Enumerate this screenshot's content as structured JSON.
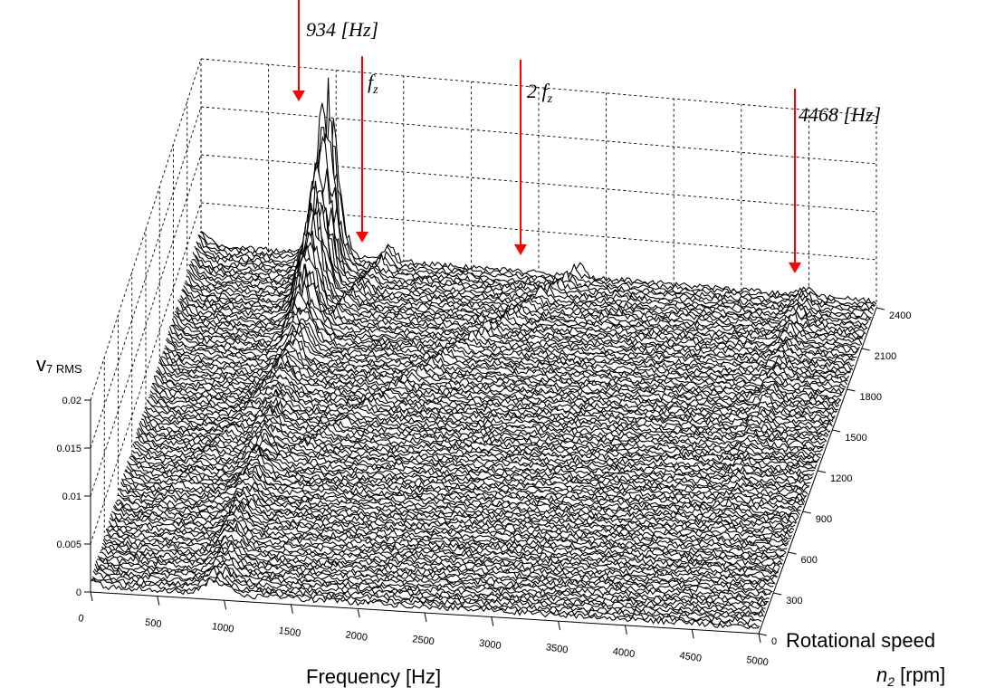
{
  "chart_data": {
    "type": "waterfall-3d",
    "x_axis": {
      "label": "Frequency [Hz]",
      "ticks": [
        "0",
        "500",
        "1000",
        "1500",
        "2000",
        "2500",
        "3000",
        "3500",
        "4000",
        "4500",
        "5000"
      ],
      "range": [
        0,
        5000
      ]
    },
    "y_axis": {
      "label_line1": "Rotational speed",
      "label_var": "n",
      "label_sub": "2",
      "label_unit": " [rpm]",
      "ticks": [
        "0",
        "300",
        "600",
        "900",
        "1200",
        "1500",
        "1800",
        "2100",
        "2400"
      ],
      "range": [
        0,
        2400
      ]
    },
    "z_axis": {
      "label_main": "v",
      "label_sub": "7 RMS",
      "ticks": [
        "0",
        "0.005",
        "0.01",
        "0.015",
        "0.02"
      ],
      "range": [
        0,
        0.02
      ]
    },
    "grid": true,
    "annotations": [
      {
        "text": "934 [Hz]",
        "frequency": 934
      },
      {
        "text": "f",
        "sub": "z",
        "frequency": 1400
      },
      {
        "text": "2 f",
        "sub": "z",
        "frequency": 2800
      },
      {
        "text": "4468 [Hz]",
        "frequency": 4468
      }
    ],
    "features": [
      {
        "name": "resonance peak",
        "frequency": 934,
        "rpm_range": [
          1600,
          2400
        ],
        "peak_value": 0.017
      },
      {
        "name": "order line 1",
        "frequency_at_max_rpm": 1400
      },
      {
        "name": "order line 2",
        "frequency_at_max_rpm": 2800
      },
      {
        "name": "component at 4468 Hz",
        "frequency": 4468
      }
    ],
    "colors": {
      "lines": "#000000",
      "arrows": "#ff0000",
      "grid": "#000000"
    }
  }
}
